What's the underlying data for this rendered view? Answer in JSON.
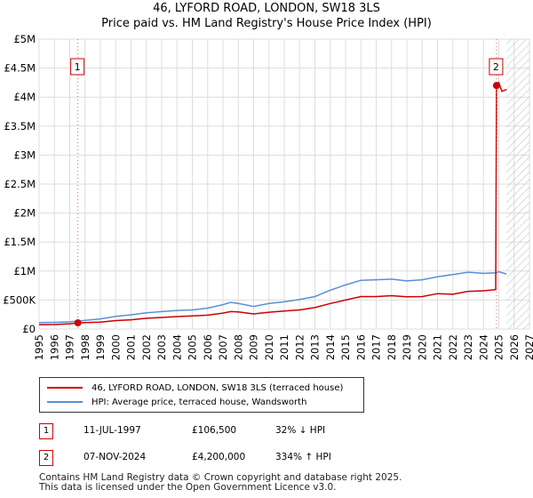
{
  "title": "46, LYFORD ROAD, LONDON, SW18 3LS",
  "subtitle": "Price paid vs. HM Land Registry's House Price Index (HPI)",
  "chart_data": {
    "type": "line",
    "title": "46, LYFORD ROAD, LONDON, SW18 3LS",
    "subtitle": "Price paid vs. HM Land Registry's House Price Index (HPI)",
    "xlabel": "",
    "ylabel": "",
    "xlim": [
      1995,
      2027
    ],
    "ylim": [
      0,
      5000000
    ],
    "grid": true,
    "x_ticks": [
      1995,
      1996,
      1997,
      1998,
      1999,
      2000,
      2001,
      2002,
      2003,
      2004,
      2005,
      2006,
      2007,
      2008,
      2009,
      2010,
      2011,
      2012,
      2013,
      2014,
      2015,
      2016,
      2017,
      2018,
      2019,
      2020,
      2021,
      2022,
      2023,
      2024,
      2025,
      2026,
      2027
    ],
    "y_ticks": [
      {
        "value": 0,
        "label": "£0"
      },
      {
        "value": 500000,
        "label": "£500K"
      },
      {
        "value": 1000000,
        "label": "£1M"
      },
      {
        "value": 1500000,
        "label": "£1.5M"
      },
      {
        "value": 2000000,
        "label": "£2M"
      },
      {
        "value": 2500000,
        "label": "£2.5M"
      },
      {
        "value": 3000000,
        "label": "£3M"
      },
      {
        "value": 3500000,
        "label": "£3.5M"
      },
      {
        "value": 4000000,
        "label": "£4M"
      },
      {
        "value": 4500000,
        "label": "£4.5M"
      },
      {
        "value": 5000000,
        "label": "£5M"
      }
    ],
    "series": [
      {
        "name": "46, LYFORD ROAD, LONDON, SW18 3LS (terraced house)",
        "color": "#cc0000",
        "points": [
          [
            1995.0,
            75000
          ],
          [
            1996.0,
            78000
          ],
          [
            1997.0,
            90000
          ],
          [
            1997.53,
            106500
          ],
          [
            1998.0,
            110000
          ],
          [
            1999.0,
            120000
          ],
          [
            2000.0,
            145000
          ],
          [
            2001.0,
            160000
          ],
          [
            2002.0,
            185000
          ],
          [
            2003.0,
            200000
          ],
          [
            2004.0,
            215000
          ],
          [
            2005.0,
            225000
          ],
          [
            2006.0,
            240000
          ],
          [
            2007.0,
            275000
          ],
          [
            2007.5,
            300000
          ],
          [
            2008.0,
            295000
          ],
          [
            2009.0,
            260000
          ],
          [
            2010.0,
            290000
          ],
          [
            2011.0,
            310000
          ],
          [
            2012.0,
            330000
          ],
          [
            2013.0,
            370000
          ],
          [
            2014.0,
            440000
          ],
          [
            2015.0,
            500000
          ],
          [
            2016.0,
            560000
          ],
          [
            2017.0,
            560000
          ],
          [
            2018.0,
            575000
          ],
          [
            2019.0,
            555000
          ],
          [
            2020.0,
            560000
          ],
          [
            2021.0,
            610000
          ],
          [
            2022.0,
            600000
          ],
          [
            2023.0,
            650000
          ],
          [
            2024.0,
            660000
          ],
          [
            2024.8,
            680000
          ],
          [
            2024.85,
            4200000
          ],
          [
            2025.0,
            4250000
          ],
          [
            2025.2,
            4100000
          ],
          [
            2025.5,
            4130000
          ]
        ]
      },
      {
        "name": "HPI: Average price, terraced house, Wandsworth",
        "color": "#5b8fd6",
        "points": [
          [
            1995.0,
            110000
          ],
          [
            1996.0,
            115000
          ],
          [
            1997.0,
            125000
          ],
          [
            1997.53,
            138000
          ],
          [
            1998.0,
            150000
          ],
          [
            1999.0,
            175000
          ],
          [
            2000.0,
            220000
          ],
          [
            2001.0,
            245000
          ],
          [
            2002.0,
            280000
          ],
          [
            2003.0,
            300000
          ],
          [
            2004.0,
            320000
          ],
          [
            2005.0,
            330000
          ],
          [
            2006.0,
            360000
          ],
          [
            2007.0,
            420000
          ],
          [
            2007.5,
            460000
          ],
          [
            2008.0,
            440000
          ],
          [
            2009.0,
            390000
          ],
          [
            2010.0,
            440000
          ],
          [
            2011.0,
            470000
          ],
          [
            2012.0,
            510000
          ],
          [
            2013.0,
            560000
          ],
          [
            2014.0,
            670000
          ],
          [
            2015.0,
            760000
          ],
          [
            2016.0,
            840000
          ],
          [
            2017.0,
            850000
          ],
          [
            2018.0,
            860000
          ],
          [
            2019.0,
            830000
          ],
          [
            2020.0,
            850000
          ],
          [
            2021.0,
            900000
          ],
          [
            2022.0,
            940000
          ],
          [
            2023.0,
            980000
          ],
          [
            2024.0,
            960000
          ],
          [
            2024.85,
            970000
          ],
          [
            2025.0,
            990000
          ],
          [
            2025.5,
            950000
          ]
        ]
      }
    ],
    "markers": [
      {
        "label": "1",
        "x": 1997.53,
        "y": 106500
      },
      {
        "label": "2",
        "x": 2024.85,
        "y": 4200000
      }
    ],
    "annotations": [
      "1",
      "2"
    ]
  },
  "legend": {
    "items": [
      {
        "label": "46, LYFORD ROAD, LONDON, SW18 3LS (terraced house)",
        "color": "#cc0000"
      },
      {
        "label": "HPI: Average price, terraced house, Wandsworth",
        "color": "#5b8fd6"
      }
    ]
  },
  "transactions": [
    {
      "id": "1",
      "date": "11-JUL-1997",
      "price": "£106,500",
      "hpi": "32% ↓ HPI"
    },
    {
      "id": "2",
      "date": "07-NOV-2024",
      "price": "£4,200,000",
      "hpi": "334% ↑ HPI"
    }
  ],
  "footer": {
    "line1": "Contains HM Land Registry data © Crown copyright and database right 2025.",
    "line2": "This data is licensed under the Open Government Licence v3.0."
  }
}
